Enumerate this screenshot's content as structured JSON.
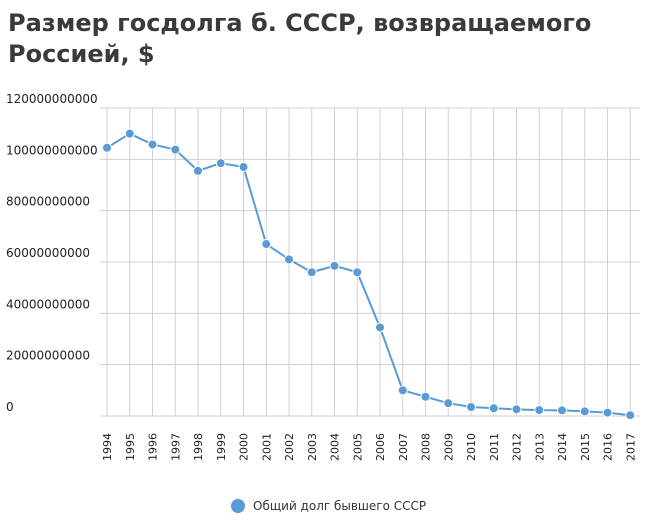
{
  "chart_data": {
    "type": "line",
    "title": "Размер госдолга б. СССР, возвращаемого Россией, $",
    "xlabel": "",
    "ylabel": "",
    "categories": [
      "1994",
      "1995",
      "1996",
      "1997",
      "1998",
      "1999",
      "2000",
      "2001",
      "2002",
      "2003",
      "2004",
      "2005",
      "2006",
      "2007",
      "2008",
      "2009",
      "2010",
      "2011",
      "2012",
      "2013",
      "2014",
      "2015",
      "2016",
      "2017"
    ],
    "y_ticks": [
      "0",
      "20000000000",
      "40000000000",
      "60000000000",
      "80000000000",
      "100000000000",
      "120000000000"
    ],
    "ylim": [
      0,
      120000000000
    ],
    "grid": true,
    "legend_position": "bottom",
    "series": [
      {
        "name": "Общий долг бывшего СССР",
        "color": "#5b9bd5",
        "values": [
          104500000000,
          110000000000,
          105800000000,
          103800000000,
          95500000000,
          98500000000,
          97000000000,
          67000000000,
          61000000000,
          56000000000,
          58500000000,
          56000000000,
          34500000000,
          10000000000,
          7500000000,
          5000000000,
          3500000000,
          3000000000,
          2600000000,
          2300000000,
          2200000000,
          1800000000,
          1300000000,
          300000000
        ]
      }
    ]
  }
}
